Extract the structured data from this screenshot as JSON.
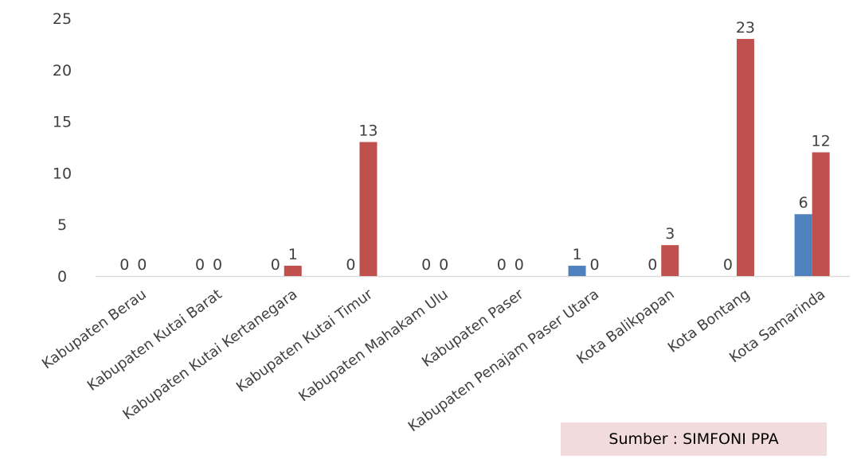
{
  "chart_data": {
    "type": "bar",
    "title": "",
    "xlabel": "",
    "ylabel": "",
    "ylim": [
      0,
      25
    ],
    "yticks": [
      0,
      5,
      10,
      15,
      20,
      25
    ],
    "grid": false,
    "legend": "none",
    "categories": [
      "Kabupaten Berau",
      "Kabupaten Kutai Barat",
      "Kabupaten Kutai Kertanegara",
      "Kabupaten Kutai Timur",
      "Kabupaten Mahakam Ulu",
      "Kabupaten Paser",
      "Kabupaten Penajam Paser Utara",
      "Kota Balikpapan",
      "Kota Bontang",
      "Kota Samarinda"
    ],
    "series": [
      {
        "color": "#4f81bd",
        "values": [
          0,
          0,
          0,
          0,
          0,
          0,
          1,
          0,
          0,
          6
        ]
      },
      {
        "color": "#c0504d",
        "values": [
          0,
          0,
          1,
          13,
          0,
          0,
          0,
          3,
          23,
          12
        ]
      }
    ],
    "data_labels": true
  },
  "source_note": "Sumber : SIMFONI PPA"
}
